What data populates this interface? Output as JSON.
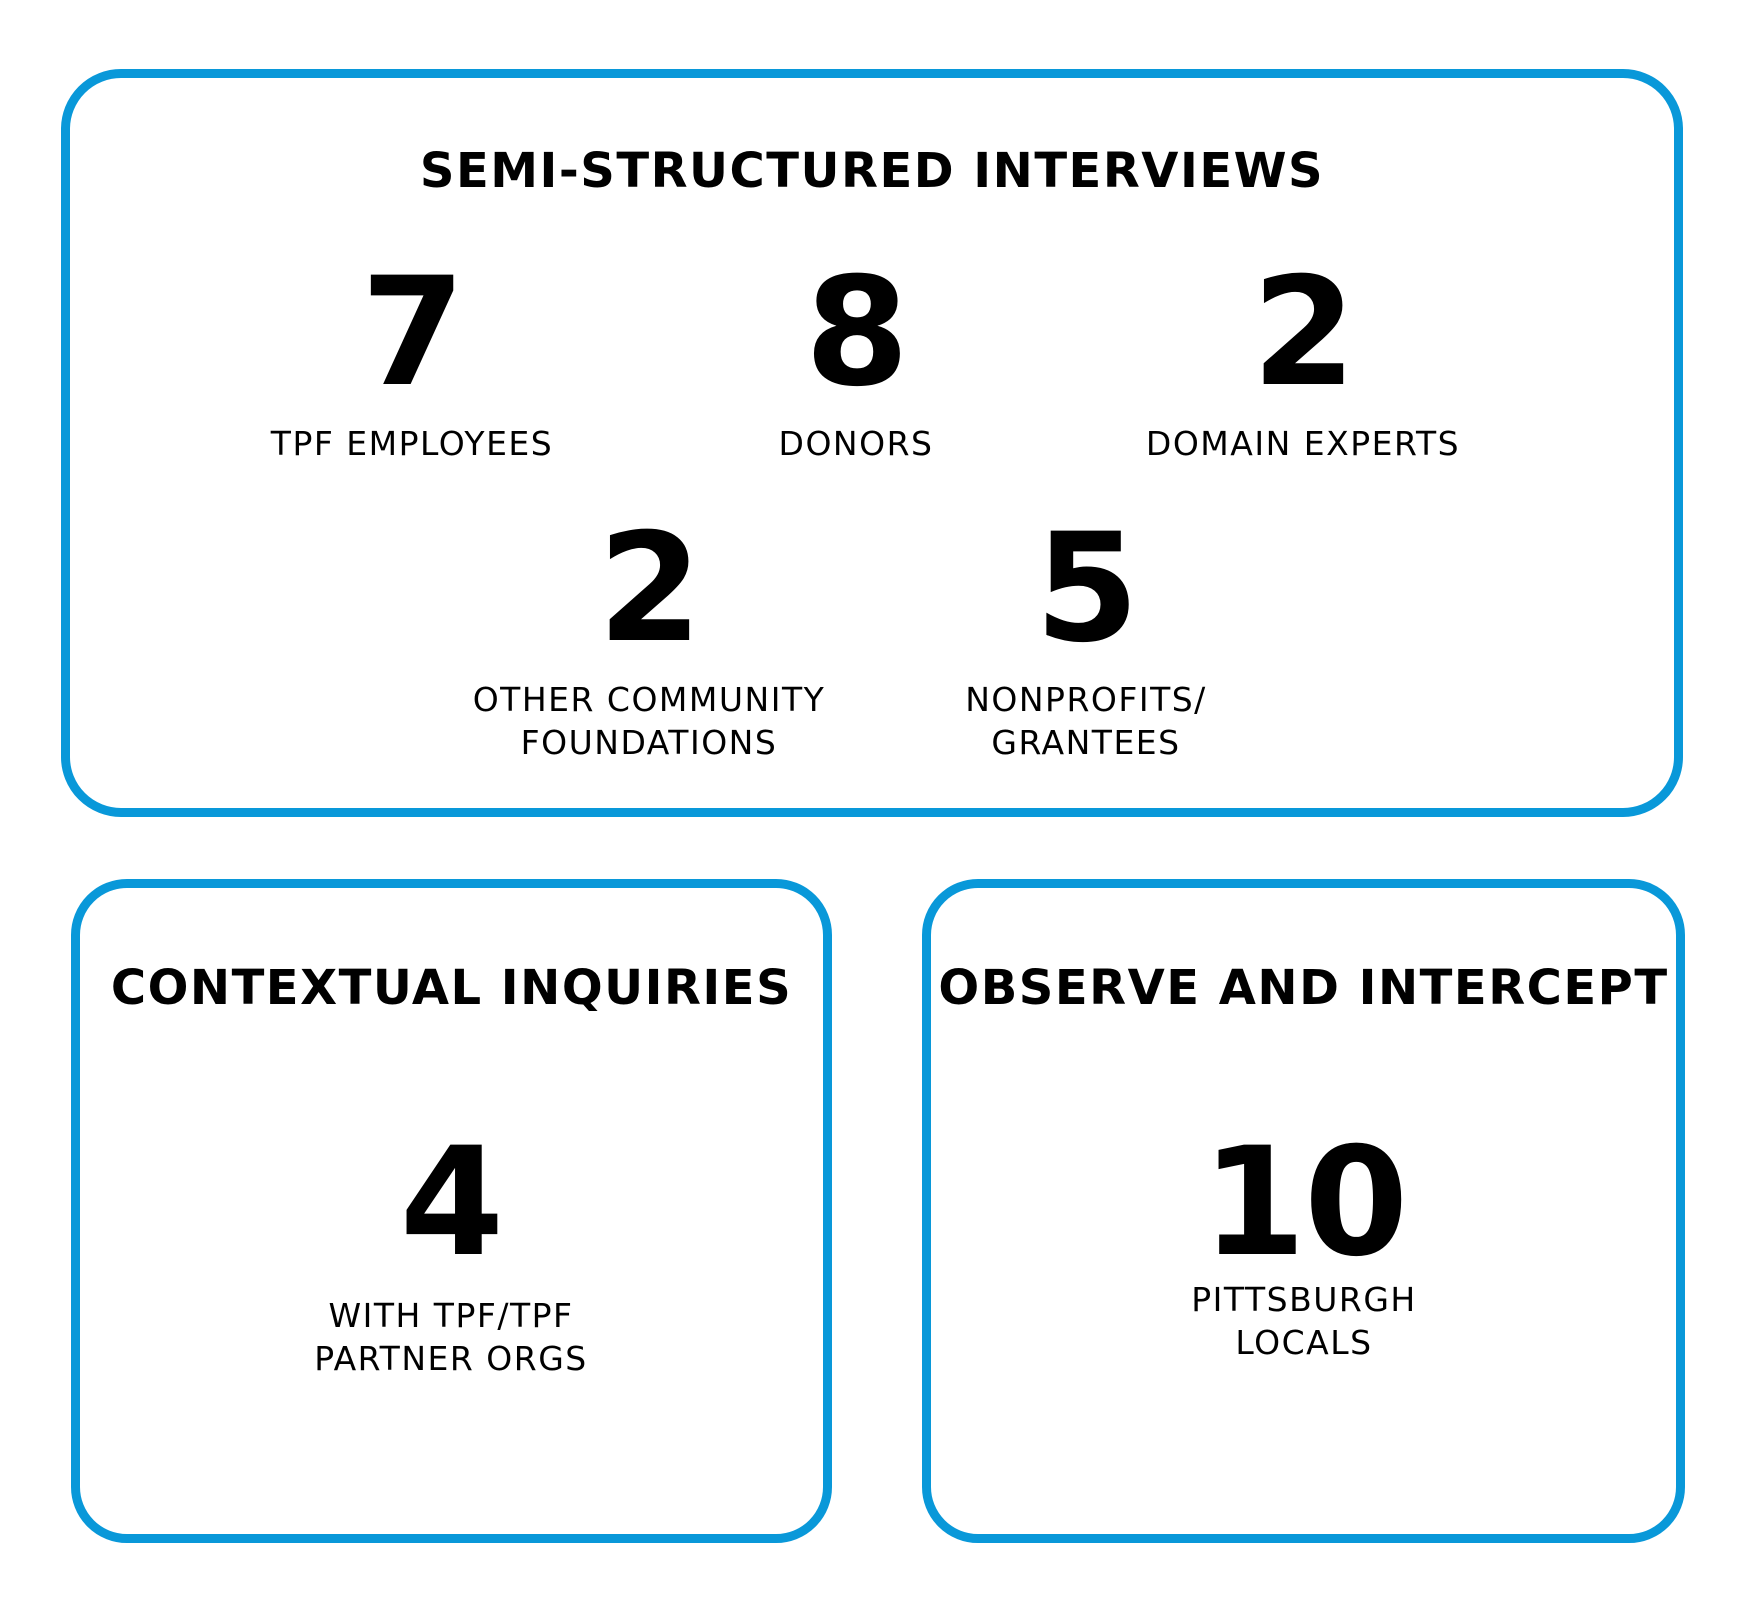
{
  "accent_color": "#0998d9",
  "semi_structured": {
    "title": "SEMI-STRUCTURED INTERVIEWS",
    "stats": [
      {
        "value": "7",
        "label": "TPF EMPLOYEES"
      },
      {
        "value": "8",
        "label": "DONORS"
      },
      {
        "value": "2",
        "label": "DOMAIN EXPERTS"
      },
      {
        "value": "2",
        "label": "OTHER COMMUNITY\nFOUNDATIONS"
      },
      {
        "value": "5",
        "label": "NONPROFITS/\nGRANTEES"
      }
    ]
  },
  "contextual_inquiries": {
    "title": "CONTEXTUAL INQUIRIES",
    "value": "4",
    "label": "WITH TPF/TPF\nPARTNER ORGS"
  },
  "observe_intercept": {
    "title": "OBSERVE AND INTERCEPT",
    "value": "10",
    "label": "PITTSBURGH\nLOCALS"
  }
}
